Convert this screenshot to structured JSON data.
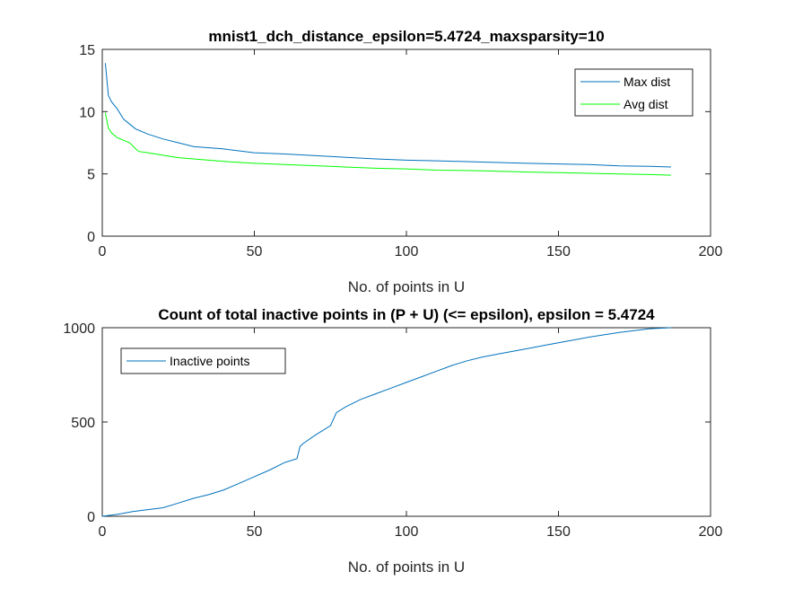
{
  "chart_data": [
    {
      "type": "line",
      "title": "mnist1_dch_distance_epsilon=5.4724_maxsparsity=10",
      "xlabel": "No. of points in U",
      "ylabel": "",
      "xlim": [
        0,
        200
      ],
      "ylim": [
        0,
        15
      ],
      "xticks": [
        0,
        50,
        100,
        150,
        200
      ],
      "yticks": [
        0,
        5,
        10,
        15
      ],
      "legend_location": "top-right",
      "series": [
        {
          "name": "Max dist",
          "color": "#0072BD",
          "x": [
            1,
            2,
            3,
            5,
            7,
            9,
            11,
            15,
            20,
            25,
            30,
            40,
            50,
            60,
            75,
            90,
            100,
            110,
            125,
            140,
            150,
            160,
            170,
            180,
            187
          ],
          "y": [
            13.9,
            11.3,
            10.8,
            10.2,
            9.4,
            9.0,
            8.6,
            8.2,
            7.8,
            7.5,
            7.2,
            7.0,
            6.7,
            6.6,
            6.4,
            6.2,
            6.1,
            6.05,
            5.95,
            5.85,
            5.8,
            5.75,
            5.65,
            5.6,
            5.55
          ]
        },
        {
          "name": "Avg dist",
          "color": "#00FF00",
          "x": [
            1,
            2,
            3,
            5,
            7,
            9,
            11,
            12,
            15,
            20,
            25,
            30,
            40,
            50,
            60,
            75,
            90,
            100,
            110,
            125,
            140,
            150,
            160,
            170,
            180,
            187
          ],
          "y": [
            9.9,
            8.7,
            8.3,
            7.9,
            7.7,
            7.5,
            7.0,
            6.8,
            6.7,
            6.5,
            6.3,
            6.2,
            6.0,
            5.85,
            5.75,
            5.6,
            5.45,
            5.4,
            5.3,
            5.25,
            5.15,
            5.1,
            5.05,
            5.0,
            4.95,
            4.9
          ]
        }
      ]
    },
    {
      "type": "line",
      "title": "Count of total inactive points in (P + U) (<= epsilon), epsilon = 5.4724",
      "xlabel": "No. of points in U",
      "ylabel": "",
      "xlim": [
        0,
        200
      ],
      "ylim": [
        0,
        1000
      ],
      "xticks": [
        0,
        50,
        100,
        150,
        200
      ],
      "yticks": [
        0,
        500,
        1000
      ],
      "legend_location": "top-left",
      "series": [
        {
          "name": "Inactive points",
          "color": "#0072BD",
          "x": [
            0,
            5,
            10,
            15,
            20,
            25,
            30,
            35,
            40,
            45,
            50,
            55,
            60,
            64,
            65,
            66,
            70,
            75,
            77,
            78,
            80,
            85,
            90,
            95,
            100,
            105,
            110,
            115,
            120,
            125,
            130,
            135,
            140,
            145,
            150,
            160,
            170,
            180,
            187
          ],
          "y": [
            0,
            10,
            25,
            35,
            45,
            70,
            95,
            115,
            140,
            175,
            210,
            245,
            285,
            305,
            370,
            385,
            430,
            480,
            550,
            560,
            580,
            620,
            650,
            680,
            710,
            740,
            770,
            800,
            825,
            845,
            860,
            875,
            890,
            905,
            920,
            950,
            975,
            995,
            1000
          ]
        }
      ]
    }
  ]
}
